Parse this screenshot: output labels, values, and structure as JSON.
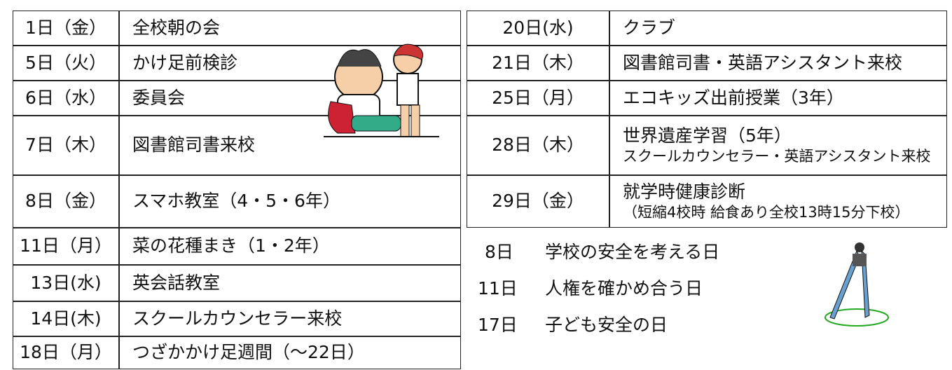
{
  "left_table": {
    "rows": [
      [
        "1日（金）",
        "全校朝の会"
      ],
      [
        "5日（火）",
        "かけ足前検診"
      ],
      [
        "6日（水）",
        "委員会"
      ],
      [
        "7日（木）",
        "図書館司書来校"
      ],
      [
        "8日（金）",
        "スマホ教室（4・5・6年）"
      ],
      [
        "11日（月）",
        "菜の花種まき（1・2年）"
      ],
      [
        "13日(水)",
        "英会話教室"
      ],
      [
        "14日(木)",
        "スクールカウンセラー来校"
      ],
      [
        "18日（月）",
        "つざかかけ足週間（～22日）"
      ]
    ]
  },
  "right_table": {
    "rows": [
      [
        "20日(水)",
        "クラブ"
      ],
      [
        "21日（木）",
        "図書館司書・英語アシスタント来校"
      ],
      [
        "25日（月）",
        "エコキッズ出前授業（3年）"
      ],
      [
        "28日（木）",
        [
          "世界遺産学習（5年）",
          "スクールカウンセラー・英語アシスタント来校"
        ]
      ],
      [
        "29日（金）",
        [
          "就学時健康診断",
          "（短縮4校時 給食あり全校13時15分下校）"
        ]
      ]
    ]
  },
  "notes": [
    [
      "8日",
      "学校の安全を考える日"
    ],
    [
      "11日",
      "人権を確かめ合う日"
    ],
    [
      "17日",
      "子ども安全の日"
    ]
  ]
}
